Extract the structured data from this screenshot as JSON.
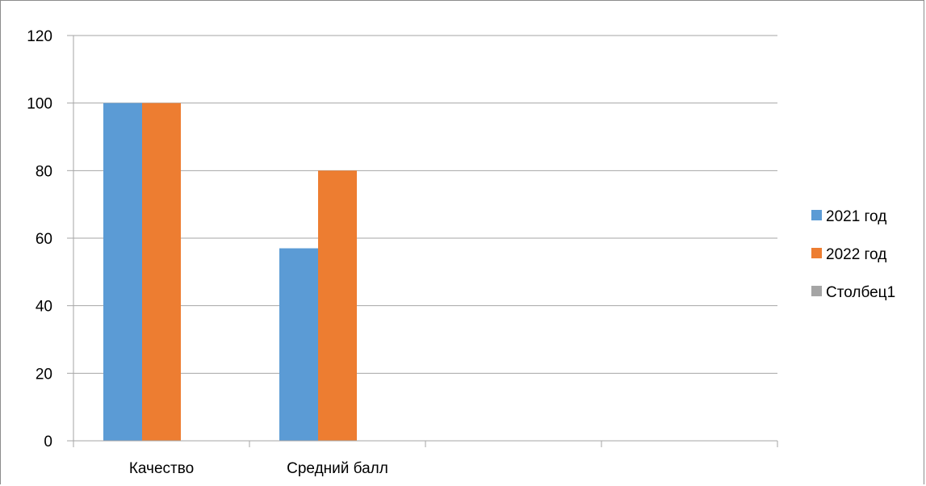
{
  "chart_data": {
    "type": "bar",
    "categories": [
      "Качество",
      "Средний балл",
      "",
      ""
    ],
    "series": [
      {
        "name": "2021 год",
        "values": [
          100,
          57,
          null,
          null
        ],
        "color": "#5b9bd5"
      },
      {
        "name": "2022 год",
        "values": [
          100,
          80,
          null,
          null
        ],
        "color": "#ed7d31"
      },
      {
        "name": "Столбец1",
        "values": [
          null,
          null,
          null,
          null
        ],
        "color": "#a5a5a5"
      }
    ],
    "ylim": [
      0,
      120
    ],
    "yticks": [
      0,
      20,
      40,
      60,
      80,
      100,
      120
    ],
    "grid": true,
    "legend_position": "right"
  }
}
